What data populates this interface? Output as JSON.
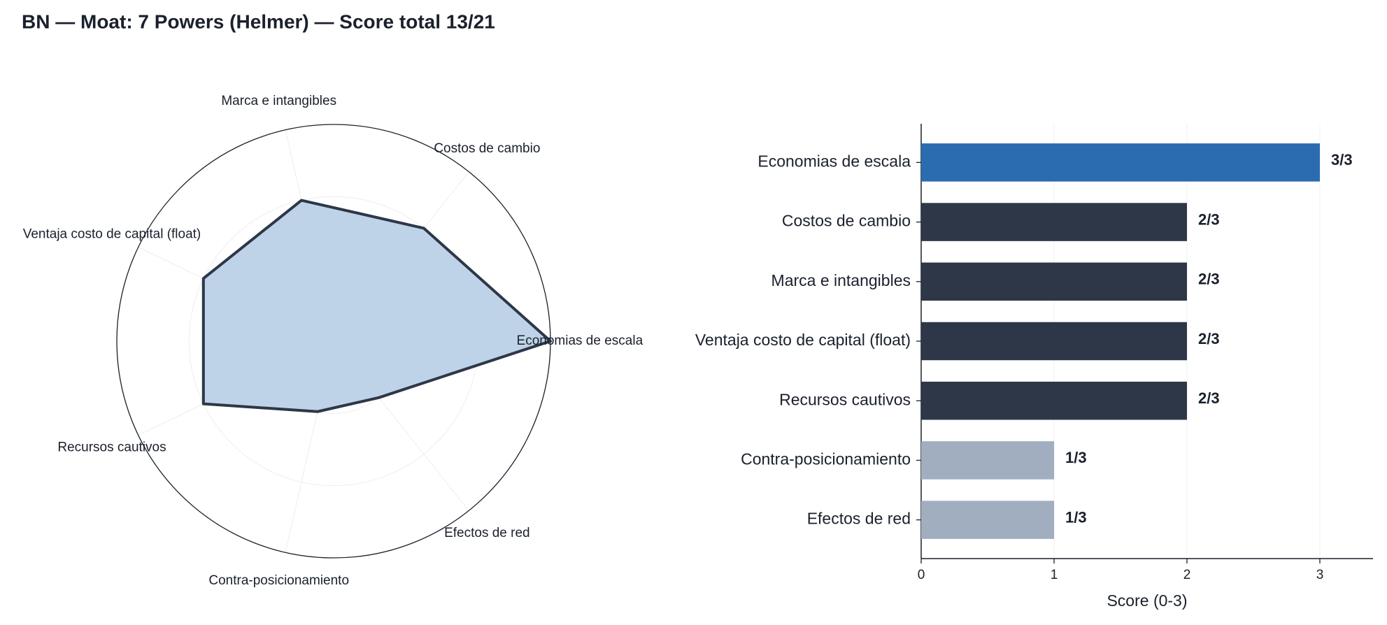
{
  "title": "BN — Moat: 7 Powers (Helmer) — Score total 13/21",
  "chart_data": [
    {
      "type": "radar",
      "categories": [
        "Economias de escala",
        "Costos de cambio",
        "Marca e intangibles",
        "Ventaja costo de capital (float)",
        "Recursos cautivos",
        "Contra-posicionamiento",
        "Efectos de red"
      ],
      "values": [
        3,
        2,
        2,
        2,
        2,
        1,
        1
      ],
      "color": "#2d3748",
      "fill": "#bfd3e8",
      "ylim": [
        0,
        3
      ],
      "yticks": [
        0,
        1,
        2,
        3
      ],
      "tick_labels": false,
      "grid": true
    },
    {
      "type": "hbar",
      "categories": [
        "Economias de escala",
        "Costos de cambio",
        "Marca e intangibles",
        "Ventaja costo de capital (float)",
        "Recursos cautivos",
        "Contra-posicionamiento",
        "Efectos de red"
      ],
      "values": [
        3,
        2,
        2,
        2,
        2,
        1,
        1
      ],
      "value_labels": [
        "3/3",
        "2/3",
        "2/3",
        "2/3",
        "2/3",
        "1/3",
        "1/3"
      ],
      "colors": [
        "#2b6cb0",
        "#2d3748",
        "#2d3748",
        "#2d3748",
        "#2d3748",
        "#a0aec0",
        "#a0aec0"
      ],
      "xlabel": "Score (0-3)",
      "xlim": [
        0,
        3.4
      ],
      "xticks": [
        0,
        1,
        2,
        3
      ],
      "grid": true
    }
  ]
}
